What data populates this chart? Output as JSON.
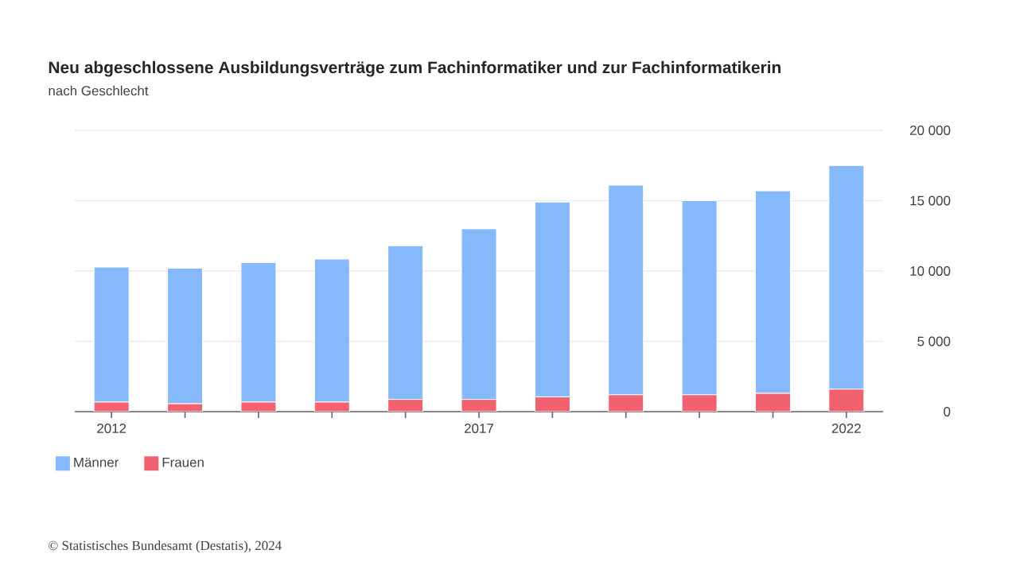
{
  "chart_data": {
    "type": "bar",
    "stacked": true,
    "title": "Neu abgeschlossene Ausbildungsverträge zum Fachinformatiker und zur Fachinformatikerin",
    "subtitle": "nach Geschlecht",
    "categories": [
      "2012",
      null,
      null,
      null,
      null,
      "2017",
      null,
      null,
      null,
      null,
      "2022"
    ],
    "series": [
      {
        "name": "Frauen",
        "color": "#f2616f",
        "values": [
          680,
          560,
          680,
          680,
          870,
          870,
          1050,
          1200,
          1200,
          1300,
          1600
        ]
      },
      {
        "name": "Männer",
        "color": "#86b9fc",
        "values": [
          9600,
          9640,
          9920,
          10170,
          10930,
          12130,
          13850,
          14900,
          13800,
          14400,
          15900
        ]
      }
    ],
    "ylim": [
      0,
      20000
    ],
    "yticks": [
      0,
      {
        "value": 5000,
        "label": "5 000"
      },
      {
        "value": 10000,
        "label": "10 000"
      },
      {
        "value": 15000,
        "label": "15 000"
      },
      {
        "value": 20000,
        "label": "20 000"
      }
    ],
    "grid": "y",
    "legend": "bottom left",
    "annotations": [
      "© Statistisches Bundesamt (Destatis), 2024"
    ]
  }
}
